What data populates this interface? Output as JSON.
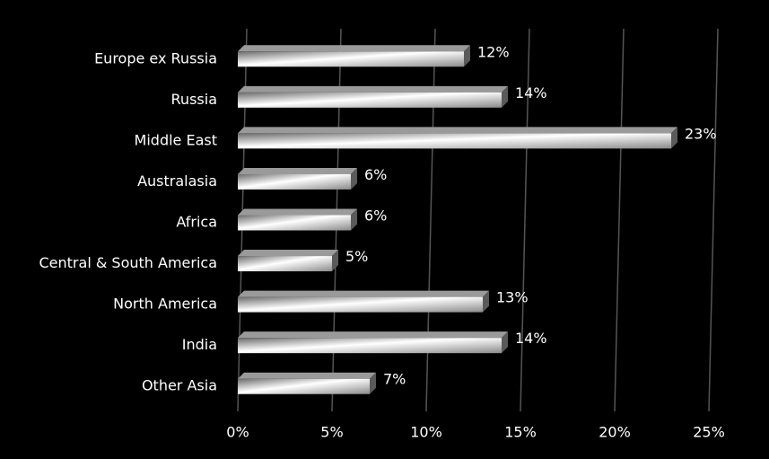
{
  "chart_data": {
    "type": "bar",
    "orientation": "horizontal",
    "categories": [
      "Europe ex Russia",
      "Russia",
      "Middle East",
      "Australasia",
      "Africa",
      "Central & South America",
      "North America",
      "India",
      "Other Asia"
    ],
    "values": [
      12,
      14,
      23,
      6,
      6,
      5,
      13,
      14,
      7
    ],
    "value_labels": [
      "12%",
      "14%",
      "23%",
      "6%",
      "6%",
      "5%",
      "13%",
      "14%",
      "7%"
    ],
    "color": "#d9d9d9",
    "xlim": [
      0,
      25
    ],
    "xticks": [
      {
        "value": 0,
        "label": "0%"
      },
      {
        "value": 5,
        "label": "5%"
      },
      {
        "value": 10,
        "label": "10%"
      },
      {
        "value": 15,
        "label": "15%"
      },
      {
        "value": 20,
        "label": "20%"
      },
      {
        "value": 25,
        "label": "25%"
      }
    ],
    "grid": true
  }
}
